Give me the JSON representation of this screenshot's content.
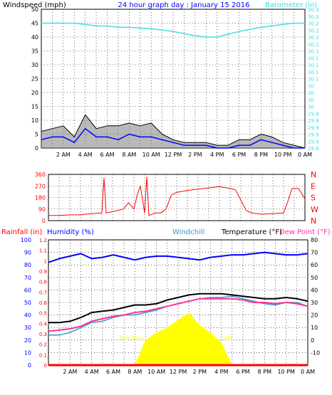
{
  "header": {
    "left_title": "Windspeed (mph)",
    "center_title": "24 hour graph day : January 15 2016",
    "right_title": "Barometer (in)"
  },
  "colors": {
    "wind": "#000000",
    "wind_avg": "#0000ff",
    "gust_fill": "#808080",
    "barometer": "#40e0e0",
    "direction": "#ff0000",
    "humidity": "#0000ff",
    "windchill": "#3399cc",
    "temperature": "#000000",
    "dewpoint": "#ff3399",
    "solar": "#ffff00",
    "rain": "#ff0000",
    "sun_label": "#ffff00"
  },
  "x_axis": {
    "tick_labels": [
      "2 AM",
      "4 AM",
      "6 AM",
      "8 AM",
      "10 AM",
      "12 PM",
      "2 PM",
      "4 PM",
      "6 PM",
      "8 PM",
      "10 PM",
      "0 AM"
    ]
  },
  "chart_data": [
    {
      "type": "line",
      "name": "wind-barometer",
      "title": "24 hour graph day : January 15 2016",
      "ylabel_left": "Windspeed (mph)",
      "ylabel_right": "Barometer (in)",
      "ylim_left": [
        0,
        50
      ],
      "ylim_right": [
        29.8,
        30.3
      ],
      "yticks_left": [
        "0",
        "5",
        "10",
        "15",
        "20",
        "25",
        "30",
        "35",
        "40",
        "45",
        "50"
      ],
      "yticks_right": [
        "29.8",
        "29.9",
        "29.9",
        "29.9",
        "29.9",
        "29.9",
        "30",
        "30",
        "30",
        "30",
        "30.1",
        "30.1",
        "30.1",
        "30.1",
        "30.1",
        "30.2",
        "30.2",
        "30.2",
        "30.2",
        "30.2",
        "30.3"
      ],
      "grid": true,
      "x": [
        0,
        1,
        2,
        3,
        4,
        5,
        6,
        7,
        8,
        9,
        10,
        11,
        12,
        13,
        14,
        15,
        16,
        17,
        18,
        19,
        20,
        21,
        22,
        23,
        24
      ],
      "series": [
        {
          "name": "Barometer (in)",
          "axis": "right",
          "values": [
            30.25,
            30.25,
            30.25,
            30.25,
            30.245,
            30.24,
            30.24,
            30.235,
            30.235,
            30.232,
            30.23,
            30.225,
            30.22,
            30.212,
            30.205,
            30.2,
            30.2,
            30.21,
            30.22,
            30.228,
            30.235,
            30.24,
            30.245,
            30.25,
            30.25
          ]
        },
        {
          "name": "wind",
          "axis": "left",
          "values": [
            6,
            7,
            8,
            4,
            12,
            7,
            8,
            8,
            9,
            8,
            9,
            5,
            3,
            2,
            2,
            2,
            1,
            1,
            3,
            3,
            5,
            4,
            2,
            1,
            0
          ]
        },
        {
          "name": "wind average",
          "axis": "left",
          "values": [
            3,
            4,
            4,
            2,
            7,
            4,
            4,
            3,
            5,
            4,
            4,
            3,
            2,
            1,
            1,
            1,
            0,
            0,
            1,
            1,
            3,
            2,
            1,
            0,
            0
          ]
        }
      ]
    },
    {
      "type": "line",
      "name": "wind-direction",
      "yticks_left": [
        "0",
        "90",
        "180",
        "270",
        "360"
      ],
      "ylim_left": [
        0,
        360
      ],
      "yticks_right": [
        "N",
        "W",
        "S",
        "E",
        "N"
      ],
      "grid": true,
      "x": [
        0,
        1,
        2,
        3,
        4,
        5,
        5.2,
        5.4,
        6,
        7,
        7.5,
        8,
        8.3,
        8.6,
        9,
        9.2,
        9.4,
        10,
        10.5,
        11,
        11.5,
        12,
        13,
        14,
        15,
        15.5,
        16,
        17,
        17.5,
        18,
        18.5,
        19,
        20,
        21,
        22,
        22.4,
        22.8,
        23.4,
        24
      ],
      "series": [
        {
          "name": "Wind direction (deg)",
          "values": [
            40,
            40,
            45,
            45,
            55,
            60,
            330,
            60,
            70,
            90,
            140,
            90,
            200,
            270,
            60,
            340,
            40,
            60,
            60,
            90,
            200,
            220,
            235,
            245,
            255,
            260,
            265,
            250,
            240,
            160,
            80,
            60,
            50,
            55,
            60,
            150,
            250,
            250,
            170
          ]
        }
      ]
    },
    {
      "type": "line",
      "name": "temperature-humidity",
      "ylabel_left": "Rainfall (in)",
      "ylabel_left2": "Humidity (%)",
      "legend": [
        "Windchill",
        "Temperature (°F)",
        "Dew Point (°F)"
      ],
      "ylim_left": [
        0,
        100
      ],
      "ylim_rain": [
        0,
        1.2
      ],
      "ylim_right": [
        -20,
        80
      ],
      "yticks_left": [
        "0",
        "10",
        "20",
        "30",
        "40",
        "50",
        "60",
        "70",
        "80",
        "90",
        "100"
      ],
      "yticks_rain": [
        "0",
        "0.1",
        "0.2",
        "0.3",
        "0.4",
        "0.5",
        "0.6",
        "0.7",
        "0.8",
        "0.9",
        "1",
        "1.1",
        "1.2"
      ],
      "yticks_right": [
        "-10",
        "0",
        "10",
        "20",
        "30",
        "40",
        "50",
        "60",
        "70",
        "80"
      ],
      "grid": true,
      "annotations": [
        "Sun Rise",
        "Set"
      ],
      "x": [
        0,
        1,
        2,
        3,
        4,
        5,
        6,
        7,
        8,
        9,
        10,
        11,
        12,
        13,
        14,
        15,
        16,
        17,
        18,
        19,
        20,
        21,
        22,
        23,
        24
      ],
      "series": [
        {
          "name": "Humidity (%)",
          "axis": "left",
          "values": [
            82,
            85,
            87,
            89,
            85,
            86,
            88,
            86,
            84,
            86,
            87,
            87,
            86,
            85,
            84,
            86,
            87,
            88,
            88,
            89,
            90,
            89,
            88,
            88,
            89
          ]
        },
        {
          "name": "Temperature (°F)",
          "axis": "right",
          "values": [
            14,
            14,
            15,
            18,
            22,
            23,
            24,
            26,
            28,
            28,
            29,
            32,
            34,
            36,
            37,
            37,
            37,
            36,
            35,
            34,
            33,
            33,
            34,
            33,
            31
          ]
        },
        {
          "name": "Dew Point (°F)",
          "axis": "right",
          "values": [
            7,
            8,
            9,
            11,
            15,
            17,
            19,
            20,
            22,
            23,
            25,
            27,
            29,
            31,
            33,
            33,
            33,
            33,
            32,
            30,
            30,
            29,
            30,
            29,
            27
          ]
        },
        {
          "name": "Windchill",
          "axis": "right",
          "values": [
            4,
            4,
            6,
            10,
            14,
            15,
            18,
            20,
            20,
            22,
            24,
            27,
            29,
            31,
            33,
            34,
            34,
            35,
            33,
            31,
            29,
            28,
            30,
            30,
            27
          ]
        },
        {
          "name": "Solar",
          "axis": "right",
          "values": [
            -20,
            -20,
            -20,
            -20,
            -20,
            -20,
            -20,
            -20,
            -20,
            0,
            6,
            10,
            16,
            22,
            12,
            6,
            -2,
            -20,
            -20,
            -20,
            -20,
            -20,
            -20,
            -20,
            -20
          ]
        },
        {
          "name": "Rainfall (in)",
          "axis": "rain",
          "values": [
            0,
            0,
            0,
            0,
            0,
            0,
            0,
            0,
            0,
            0,
            0,
            0,
            0,
            0,
            0,
            0,
            0,
            0,
            0,
            0,
            0,
            0,
            0,
            0,
            0
          ]
        }
      ]
    }
  ]
}
